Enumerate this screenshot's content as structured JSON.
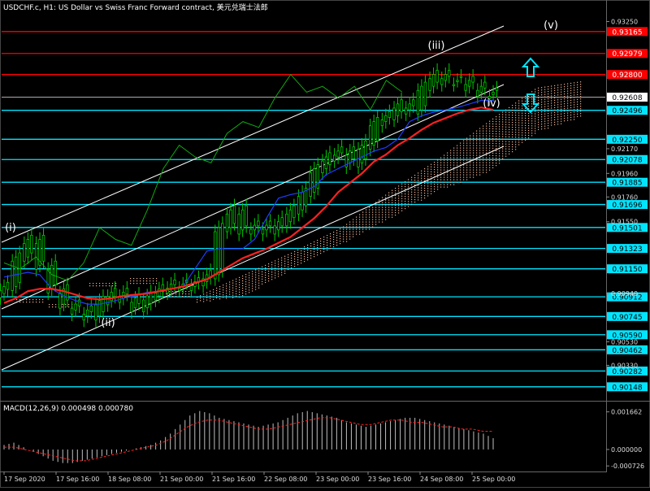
{
  "header": {
    "title": "USDCHF.c, H1: US Dollar vs Swiss Franc Forward contract, 美元兑瑞士法郎"
  },
  "macd_panel": {
    "label": "MACD(12,26,9) 0.000498 0.000780"
  },
  "colors": {
    "background": "#000000",
    "bull_candle": "#00cc00",
    "support_level": "#00e5ff",
    "resistance_level": "#ff0000",
    "ma_red": "#ff2020",
    "ma_blue": "#1f3dff",
    "lagging_green": "#11aa11",
    "cloud_dots": "#f0b496",
    "channel": "#ffffff",
    "arrow": "#00e5ff",
    "macd_hist": "#c0c0c0",
    "macd_signal": "#ff2020"
  },
  "icons": {
    "up": "up-arrow-icon",
    "down": "down-arrow-icon"
  },
  "chart_data": [
    {
      "type": "line",
      "title": "USDCHF.c, H1",
      "x_ticks": [
        "17 Sep 2020",
        "17 Sep 16:00",
        "18 Sep 08:00",
        "21 Sep 00:00",
        "21 Sep 16:00",
        "22 Sep 08:00",
        "23 Sep 00:00",
        "23 Sep 16:00",
        "24 Sep 08:00",
        "25 Sep 00:00"
      ],
      "y_ticks": [
        0.9325,
        0.9217,
        0.9196,
        0.9176,
        0.9155,
        0.9094,
        0.9053,
        0.9033
      ],
      "ylim": [
        0.9005,
        0.9335
      ],
      "resistance_levels": [
        {
          "value": 0.93165,
          "label": "0.93165"
        },
        {
          "value": 0.92979,
          "label": "0.92979"
        },
        {
          "value": 0.928,
          "label": "0.92800"
        }
      ],
      "current_price": {
        "value": 0.92608,
        "label": "0.92608"
      },
      "support_levels": [
        {
          "value": 0.92496,
          "label": "0.92496"
        },
        {
          "value": 0.9225,
          "label": "0.92250"
        },
        {
          "value": 0.92078,
          "label": "0.92078"
        },
        {
          "value": 0.91885,
          "label": "0.91885"
        },
        {
          "value": 0.91696,
          "label": "0.91696"
        },
        {
          "value": 0.91501,
          "label": "0.91501"
        },
        {
          "value": 0.91323,
          "label": "0.91323"
        },
        {
          "value": 0.9115,
          "label": "0.91150"
        },
        {
          "value": 0.90912,
          "label": "0.90912"
        },
        {
          "value": 0.90745,
          "label": "0.90745"
        },
        {
          "value": 0.9059,
          "label": "0.90590"
        },
        {
          "value": 0.90462,
          "label": "0.90462"
        },
        {
          "value": 0.90282,
          "label": "0.90282"
        },
        {
          "value": 0.90148,
          "label": "0.90148"
        }
      ],
      "wave_labels": [
        "(i)",
        "(ii)",
        "(iii)",
        "(iv)",
        "(v)"
      ],
      "series": [
        {
          "values": [
            0.91,
            0.9125,
            0.914,
            0.9118,
            0.9098,
            0.9085,
            0.908,
            0.9075,
            0.9088,
            0.9095,
            0.909,
            0.9082,
            0.9092,
            0.9098,
            0.9102,
            0.91,
            0.9104,
            0.911,
            0.915,
            0.9165,
            0.9148,
            0.9152,
            0.9148,
            0.9155,
            0.9165,
            0.918,
            0.92,
            0.921,
            0.9215,
            0.9205,
            0.922,
            0.924,
            0.9245,
            0.9255,
            0.925,
            0.927,
            0.928,
            0.9275,
            0.9275,
            0.927,
            0.9265,
            0.9263
          ]
        },
        {
          "values": [
            0.9086,
            0.909,
            0.9096,
            0.9098,
            0.9098,
            0.9096,
            0.9093,
            0.909,
            0.9089,
            0.909,
            0.9092,
            0.9093,
            0.9094,
            0.9096,
            0.9098,
            0.91,
            0.9103,
            0.9106,
            0.9112,
            0.9118,
            0.9124,
            0.9128,
            0.9132,
            0.9137,
            0.9142,
            0.915,
            0.9158,
            0.9168,
            0.918,
            0.9188,
            0.9196,
            0.9206,
            0.9212,
            0.922,
            0.9226,
            0.9233,
            0.9239,
            0.9243,
            0.9247,
            0.925,
            0.9252,
            0.925
          ]
        },
        {
          "values": [
            0.9108,
            0.911,
            0.9112,
            0.911,
            0.9098,
            0.9092,
            0.9088,
            0.9085,
            0.9085,
            0.9087,
            0.909,
            0.9092,
            0.9095,
            0.9096,
            0.9098,
            0.91,
            0.9115,
            0.913,
            0.9132,
            0.9132,
            0.9132,
            0.914,
            0.9158,
            0.9175,
            0.9178,
            0.918,
            0.9185,
            0.9195,
            0.92,
            0.9205,
            0.921,
            0.9215,
            0.9218,
            0.9225,
            0.924,
            0.9245,
            0.9248,
            0.925,
            0.9252,
            0.9255,
            0.9258,
            0.9258
          ]
        },
        {
          "values": [
            0.912,
            0.9115,
            0.9125,
            0.911,
            0.9105,
            0.912,
            0.915,
            0.914,
            0.9135,
            0.9165,
            0.92,
            0.922,
            0.921,
            0.9205,
            0.923,
            0.924,
            0.9235,
            0.926,
            0.928,
            0.9265,
            0.927,
            0.926,
            0.927,
            0.925,
            0.9275,
            0.9265
          ]
        }
      ]
    },
    {
      "type": "bar",
      "title": "MACD(12,26,9)",
      "y_ticks": [
        0.001662,
        0.0,
        -0.000726
      ],
      "ylim": [
        -0.0009,
        0.0019
      ],
      "series": [
        {
          "values": [
            0.0002,
            0.0003,
            0.0001,
            -0.0001,
            -0.0003,
            -0.0005,
            -0.0006,
            -0.0006,
            -0.0005,
            -0.0004,
            -0.0003,
            -0.0002,
            -0.0001,
            0.0,
            0.0001,
            0.0002,
            0.0004,
            0.0007,
            0.0011,
            0.0015,
            0.0017,
            0.0016,
            0.0014,
            0.0013,
            0.0012,
            0.0011,
            0.001,
            0.0011,
            0.0012,
            0.0014,
            0.0016,
            0.0017,
            0.0016,
            0.0015,
            0.0014,
            0.0012,
            0.0011,
            0.001,
            0.0011,
            0.0012,
            0.0013,
            0.0014,
            0.0014,
            0.0013,
            0.0012,
            0.0011,
            0.001,
            0.0009,
            0.0008,
            0.0007,
            0.0005
          ]
        },
        {
          "values": [
            0.0001,
            0.0001,
            0.0,
            -0.0001,
            -0.0002,
            -0.0003,
            -0.0004,
            -0.0005,
            -0.0005,
            -0.0004,
            -0.0003,
            -0.0002,
            -0.0001,
            0.0,
            0.0001,
            0.0002,
            0.0004,
            0.0007,
            0.001,
            0.0012,
            0.0013,
            0.0013,
            0.0012,
            0.0011,
            0.001,
            0.0009,
            0.0009,
            0.001,
            0.0011,
            0.0012,
            0.0013,
            0.0014,
            0.0014,
            0.0013,
            0.0012,
            0.0011,
            0.0011,
            0.0012,
            0.0013,
            0.0013,
            0.0012,
            0.0012,
            0.0011,
            0.001,
            0.001,
            0.0009,
            0.0009,
            0.0008,
            0.0008
          ]
        }
      ]
    }
  ]
}
